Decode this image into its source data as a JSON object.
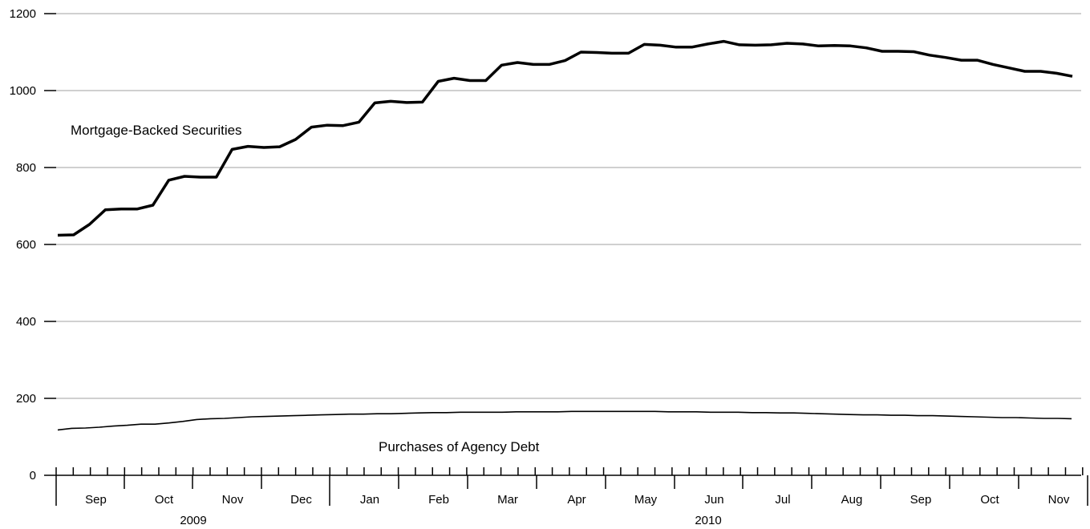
{
  "chart_data": {
    "type": "line",
    "title": "",
    "xlabel": "",
    "ylabel": "",
    "ylim": [
      0,
      1200
    ],
    "yticks": [
      "0",
      "200",
      "400",
      "600",
      "800",
      "1000",
      "1200"
    ],
    "grid": true,
    "month_labels": [
      "Sep",
      "Oct",
      "Nov",
      "Dec",
      "Jan",
      "Feb",
      "Mar",
      "Apr",
      "May",
      "Jun",
      "Jul",
      "Aug",
      "Sep",
      "Oct",
      "Nov"
    ],
    "year_labels": [
      "2009",
      "2010"
    ],
    "series": [
      {
        "name": "Mortgage-Backed Securities",
        "values": [
          624,
          625,
          652,
          690,
          692,
          692,
          702,
          767,
          777,
          775,
          775,
          847,
          855,
          852,
          854,
          873,
          905,
          910,
          909,
          918,
          968,
          972,
          969,
          970,
          1024,
          1032,
          1026,
          1026,
          1066,
          1073,
          1068,
          1068,
          1078,
          1100,
          1099,
          1097,
          1097,
          1120,
          1118,
          1113,
          1113,
          1121,
          1128,
          1119,
          1118,
          1119,
          1123,
          1121,
          1116,
          1117,
          1116,
          1111,
          1102,
          1102,
          1101,
          1092,
          1086,
          1079,
          1079,
          1068,
          1059,
          1050,
          1050,
          1045,
          1037
        ]
      },
      {
        "name": "Purchases of Agency Debt",
        "values": [
          118,
          122,
          123,
          125,
          128,
          130,
          133,
          133,
          136,
          140,
          145,
          147,
          148,
          150,
          152,
          153,
          154,
          155,
          156,
          157,
          158,
          159,
          159,
          160,
          160,
          161,
          162,
          163,
          163,
          164,
          164,
          164,
          164,
          165,
          165,
          165,
          165,
          166,
          166,
          166,
          166,
          166,
          166,
          166,
          165,
          165,
          165,
          164,
          164,
          164,
          163,
          163,
          162,
          162,
          161,
          160,
          159,
          158,
          157,
          157,
          156,
          156,
          155,
          155,
          154,
          153,
          152,
          151,
          150,
          150,
          149,
          148,
          148,
          147
        ]
      }
    ]
  }
}
